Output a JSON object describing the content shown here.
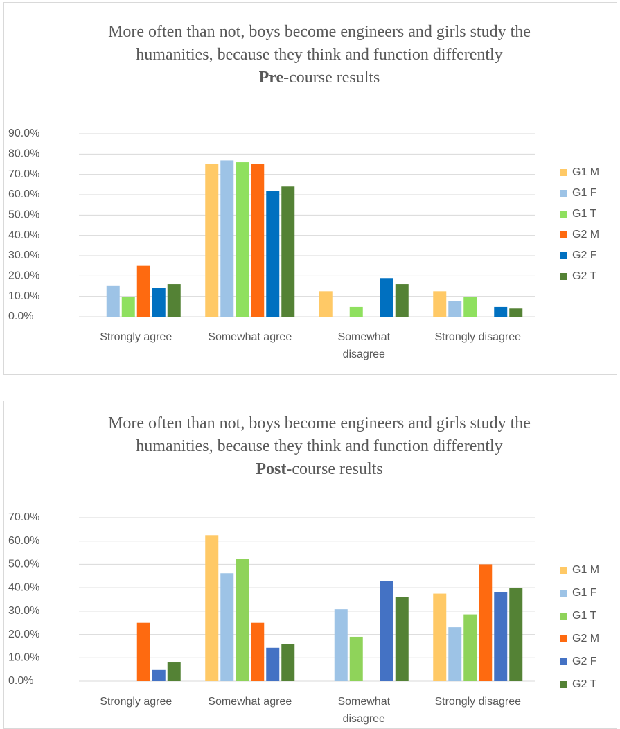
{
  "chart_data": [
    {
      "type": "bar",
      "title": "More often than not, boys become engineers and girls study the humanities, because they think and function differently",
      "subtitle_bold": "Pre",
      "subtitle_rest": "-course results",
      "categories": [
        "Strongly agree",
        "Somewhat agree",
        "Somewhat disagree",
        "Strongly disagree"
      ],
      "series": [
        {
          "name": "G1 M",
          "color": "#ffc966",
          "values": [
            0,
            75,
            12.5,
            12.5
          ]
        },
        {
          "name": "G1 F",
          "color": "#9dc3e6",
          "values": [
            15.4,
            76.9,
            0,
            7.7
          ]
        },
        {
          "name": "G1 T",
          "color": "#8fe05f",
          "values": [
            9.6,
            76,
            4.8,
            9.6
          ]
        },
        {
          "name": "G2 M",
          "color": "#fe6a10",
          "values": [
            25,
            75,
            0,
            0
          ]
        },
        {
          "name": "G2 F",
          "color": "#0070c0",
          "values": [
            14.3,
            62,
            19,
            4.8
          ]
        },
        {
          "name": "G2 T",
          "color": "#548235",
          "values": [
            16,
            64,
            16,
            4
          ]
        }
      ],
      "ylim": [
        0,
        90
      ],
      "yticks": [
        {
          "value": 0,
          "label": "0.0%"
        },
        {
          "value": 10,
          "label": "10.0%"
        },
        {
          "value": 20,
          "label": "20.0%"
        },
        {
          "value": 30,
          "label": "30.0%"
        },
        {
          "value": 40,
          "label": "40.0%"
        },
        {
          "value": 50,
          "label": "50.0%"
        },
        {
          "value": 60,
          "label": "60.0%"
        },
        {
          "value": 70,
          "label": "70.0%"
        },
        {
          "value": 80,
          "label": "80.0%"
        },
        {
          "value": 90,
          "label": "90.0%"
        }
      ],
      "grid": true,
      "legend": "right"
    },
    {
      "type": "bar",
      "title": "More often than not, boys become engineers and girls study the humanities, because they think and function differently",
      "subtitle_bold": "Post",
      "subtitle_rest": "-course results",
      "categories": [
        "Strongly agree",
        "Somewhat agree",
        "Somewhat disagree",
        "Strongly disagree"
      ],
      "series": [
        {
          "name": "G1 M",
          "color": "#ffc966",
          "values": [
            0,
            62.5,
            0,
            37.5
          ]
        },
        {
          "name": "G1 F",
          "color": "#9dc3e6",
          "values": [
            0,
            46.2,
            30.8,
            23.1
          ]
        },
        {
          "name": "G1 T",
          "color": "#8fd35a",
          "values": [
            0,
            52.4,
            19,
            28.6
          ]
        },
        {
          "name": "G2 M",
          "color": "#fe6a10",
          "values": [
            25,
            25,
            0,
            50
          ]
        },
        {
          "name": "G2 F",
          "color": "#4472c4",
          "values": [
            4.8,
            14.3,
            42.9,
            38.1
          ]
        },
        {
          "name": "G2 T",
          "color": "#548235",
          "values": [
            8,
            16,
            36,
            40
          ]
        }
      ],
      "ylim": [
        0,
        70
      ],
      "yticks": [
        {
          "value": 0,
          "label": "0.0%"
        },
        {
          "value": 10,
          "label": "10.0%"
        },
        {
          "value": 20,
          "label": "20.0%"
        },
        {
          "value": 30,
          "label": "30.0%"
        },
        {
          "value": 40,
          "label": "40.0%"
        },
        {
          "value": 50,
          "label": "50.0%"
        },
        {
          "value": 60,
          "label": "60.0%"
        },
        {
          "value": 70,
          "label": "70.0%"
        }
      ],
      "grid": true,
      "legend": "right"
    }
  ]
}
